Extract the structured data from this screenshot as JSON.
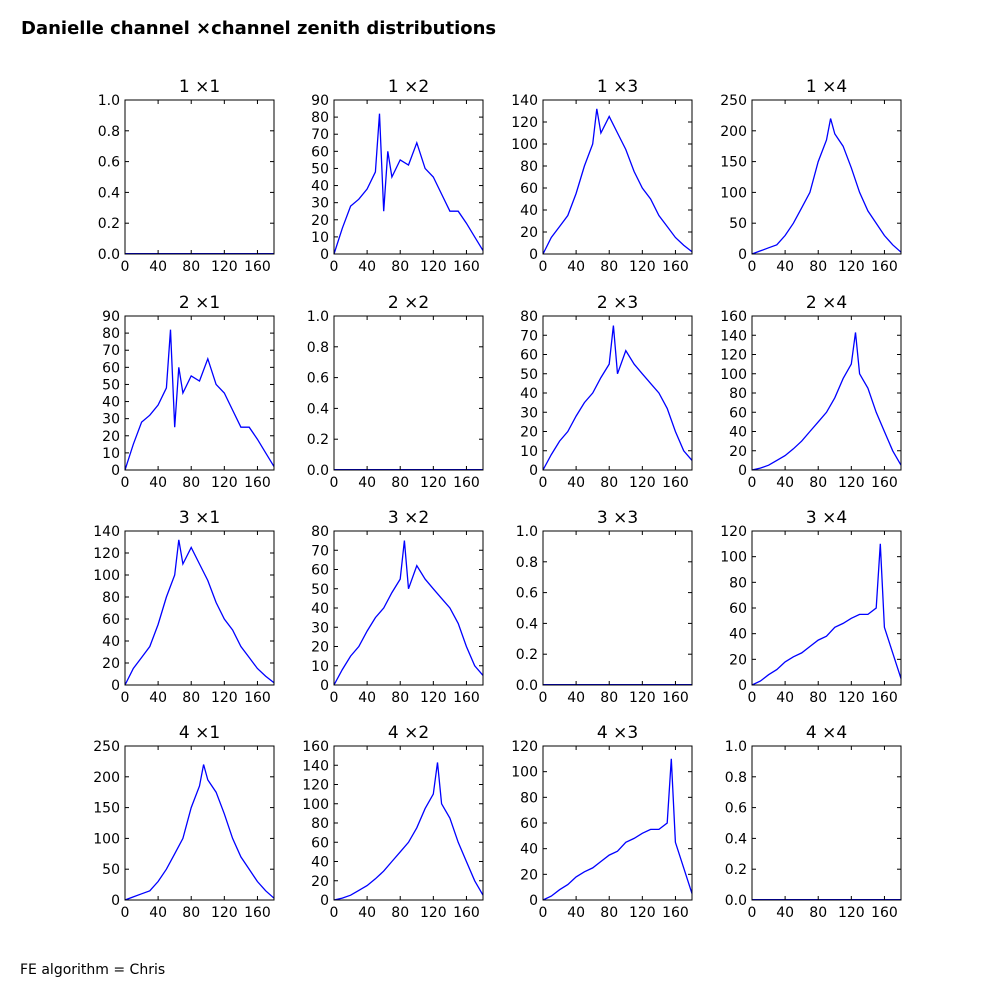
{
  "figure": {
    "title": "Danielle channel ×channel zenith distributions",
    "footer": "FE algorithm = Chris"
  },
  "style": {
    "line_color": "#0000ff",
    "axis_color": "#000000",
    "background": "#ffffff"
  },
  "chart_data": [
    {
      "type": "line",
      "title": "1 ×1",
      "row": 1,
      "col": 1,
      "empty": true,
      "xlim": [
        0,
        180
      ],
      "ylim": [
        0,
        1
      ],
      "xticks": [
        0,
        40,
        80,
        120,
        160
      ],
      "yticks": [
        0.0,
        0.2,
        0.4,
        0.6,
        0.8,
        1.0
      ],
      "series": []
    },
    {
      "type": "line",
      "title": "1 ×2",
      "row": 1,
      "col": 2,
      "xlim": [
        0,
        180
      ],
      "ylim": [
        0,
        90
      ],
      "xticks": [
        0,
        40,
        80,
        120,
        160
      ],
      "yticks": [
        0,
        10,
        20,
        30,
        40,
        50,
        60,
        70,
        80,
        90
      ],
      "series": [
        {
          "x": [
            0,
            10,
            20,
            30,
            40,
            50,
            55,
            60,
            65,
            70,
            80,
            90,
            100,
            110,
            120,
            130,
            140,
            150,
            160,
            170,
            180
          ],
          "y": [
            0,
            15,
            28,
            32,
            38,
            48,
            82,
            25,
            60,
            45,
            55,
            52,
            65,
            50,
            45,
            35,
            25,
            25,
            18,
            10,
            2
          ]
        }
      ]
    },
    {
      "type": "line",
      "title": "1 ×3",
      "row": 1,
      "col": 3,
      "xlim": [
        0,
        180
      ],
      "ylim": [
        0,
        140
      ],
      "xticks": [
        0,
        40,
        80,
        120,
        160
      ],
      "yticks": [
        0,
        20,
        40,
        60,
        80,
        100,
        120,
        140
      ],
      "series": [
        {
          "x": [
            0,
            10,
            20,
            30,
            40,
            50,
            60,
            65,
            70,
            80,
            90,
            100,
            110,
            120,
            130,
            140,
            150,
            160,
            170,
            180
          ],
          "y": [
            0,
            15,
            25,
            35,
            55,
            80,
            100,
            132,
            110,
            125,
            110,
            95,
            75,
            60,
            50,
            35,
            25,
            15,
            8,
            2
          ]
        }
      ]
    },
    {
      "type": "line",
      "title": "1 ×4",
      "row": 1,
      "col": 4,
      "xlim": [
        0,
        180
      ],
      "ylim": [
        0,
        250
      ],
      "xticks": [
        0,
        40,
        80,
        120,
        160
      ],
      "yticks": [
        0,
        50,
        100,
        150,
        200,
        250
      ],
      "series": [
        {
          "x": [
            0,
            10,
            20,
            30,
            40,
            50,
            60,
            70,
            80,
            90,
            95,
            100,
            110,
            120,
            130,
            140,
            150,
            160,
            170,
            180
          ],
          "y": [
            0,
            5,
            10,
            15,
            30,
            50,
            75,
            100,
            150,
            185,
            220,
            195,
            175,
            140,
            100,
            70,
            50,
            30,
            15,
            3
          ]
        }
      ]
    },
    {
      "type": "line",
      "title": "2 ×1",
      "row": 2,
      "col": 1,
      "xlim": [
        0,
        180
      ],
      "ylim": [
        0,
        90
      ],
      "xticks": [
        0,
        40,
        80,
        120,
        160
      ],
      "yticks": [
        0,
        10,
        20,
        30,
        40,
        50,
        60,
        70,
        80,
        90
      ],
      "series": [
        {
          "x": [
            0,
            10,
            20,
            30,
            40,
            50,
            55,
            60,
            65,
            70,
            80,
            90,
            100,
            110,
            120,
            130,
            140,
            150,
            160,
            170,
            180
          ],
          "y": [
            0,
            15,
            28,
            32,
            38,
            48,
            82,
            25,
            60,
            45,
            55,
            52,
            65,
            50,
            45,
            35,
            25,
            25,
            18,
            10,
            2
          ]
        }
      ]
    },
    {
      "type": "line",
      "title": "2 ×2",
      "row": 2,
      "col": 2,
      "empty": true,
      "xlim": [
        0,
        180
      ],
      "ylim": [
        0,
        1
      ],
      "xticks": [
        0,
        40,
        80,
        120,
        160
      ],
      "yticks": [
        0.0,
        0.2,
        0.4,
        0.6,
        0.8,
        1.0
      ],
      "series": []
    },
    {
      "type": "line",
      "title": "2 ×3",
      "row": 2,
      "col": 3,
      "xlim": [
        0,
        180
      ],
      "ylim": [
        0,
        80
      ],
      "xticks": [
        0,
        40,
        80,
        120,
        160
      ],
      "yticks": [
        0,
        10,
        20,
        30,
        40,
        50,
        60,
        70,
        80
      ],
      "series": [
        {
          "x": [
            0,
            10,
            20,
            30,
            40,
            50,
            60,
            70,
            80,
            85,
            90,
            100,
            110,
            120,
            130,
            140,
            150,
            160,
            170,
            180
          ],
          "y": [
            0,
            8,
            15,
            20,
            28,
            35,
            40,
            48,
            55,
            75,
            50,
            62,
            55,
            50,
            45,
            40,
            32,
            20,
            10,
            5
          ]
        }
      ]
    },
    {
      "type": "line",
      "title": "2 ×4",
      "row": 2,
      "col": 4,
      "xlim": [
        0,
        180
      ],
      "ylim": [
        0,
        160
      ],
      "xticks": [
        0,
        40,
        80,
        120,
        160
      ],
      "yticks": [
        0,
        20,
        40,
        60,
        80,
        100,
        120,
        140,
        160
      ],
      "series": [
        {
          "x": [
            0,
            10,
            20,
            30,
            40,
            50,
            60,
            70,
            80,
            90,
            100,
            110,
            120,
            125,
            130,
            140,
            150,
            160,
            170,
            180
          ],
          "y": [
            0,
            2,
            5,
            10,
            15,
            22,
            30,
            40,
            50,
            60,
            75,
            95,
            110,
            143,
            100,
            85,
            60,
            40,
            20,
            5
          ]
        }
      ]
    },
    {
      "type": "line",
      "title": "3 ×1",
      "row": 3,
      "col": 1,
      "xlim": [
        0,
        180
      ],
      "ylim": [
        0,
        140
      ],
      "xticks": [
        0,
        40,
        80,
        120,
        160
      ],
      "yticks": [
        0,
        20,
        40,
        60,
        80,
        100,
        120,
        140
      ],
      "series": [
        {
          "x": [
            0,
            10,
            20,
            30,
            40,
            50,
            60,
            65,
            70,
            80,
            90,
            100,
            110,
            120,
            130,
            140,
            150,
            160,
            170,
            180
          ],
          "y": [
            0,
            15,
            25,
            35,
            55,
            80,
            100,
            132,
            110,
            125,
            110,
            95,
            75,
            60,
            50,
            35,
            25,
            15,
            8,
            2
          ]
        }
      ]
    },
    {
      "type": "line",
      "title": "3 ×2",
      "row": 3,
      "col": 2,
      "xlim": [
        0,
        180
      ],
      "ylim": [
        0,
        80
      ],
      "xticks": [
        0,
        40,
        80,
        120,
        160
      ],
      "yticks": [
        0,
        10,
        20,
        30,
        40,
        50,
        60,
        70,
        80
      ],
      "series": [
        {
          "x": [
            0,
            10,
            20,
            30,
            40,
            50,
            60,
            70,
            80,
            85,
            90,
            100,
            110,
            120,
            130,
            140,
            150,
            160,
            170,
            180
          ],
          "y": [
            0,
            8,
            15,
            20,
            28,
            35,
            40,
            48,
            55,
            75,
            50,
            62,
            55,
            50,
            45,
            40,
            32,
            20,
            10,
            5
          ]
        }
      ]
    },
    {
      "type": "line",
      "title": "3 ×3",
      "row": 3,
      "col": 3,
      "empty": true,
      "xlim": [
        0,
        180
      ],
      "ylim": [
        0,
        1
      ],
      "xticks": [
        0,
        40,
        80,
        120,
        160
      ],
      "yticks": [
        0.0,
        0.2,
        0.4,
        0.6,
        0.8,
        1.0
      ],
      "series": []
    },
    {
      "type": "line",
      "title": "3 ×4",
      "row": 3,
      "col": 4,
      "xlim": [
        0,
        180
      ],
      "ylim": [
        0,
        120
      ],
      "xticks": [
        0,
        40,
        80,
        120,
        160
      ],
      "yticks": [
        0,
        20,
        40,
        60,
        80,
        100,
        120
      ],
      "series": [
        {
          "x": [
            0,
            10,
            20,
            30,
            40,
            50,
            60,
            70,
            80,
            90,
            100,
            110,
            120,
            130,
            140,
            150,
            155,
            160,
            170,
            180
          ],
          "y": [
            0,
            3,
            8,
            12,
            18,
            22,
            25,
            30,
            35,
            38,
            45,
            48,
            52,
            55,
            55,
            60,
            110,
            45,
            25,
            5
          ]
        }
      ]
    },
    {
      "type": "line",
      "title": "4 ×1",
      "row": 4,
      "col": 1,
      "xlim": [
        0,
        180
      ],
      "ylim": [
        0,
        250
      ],
      "xticks": [
        0,
        40,
        80,
        120,
        160
      ],
      "yticks": [
        0,
        50,
        100,
        150,
        200,
        250
      ],
      "series": [
        {
          "x": [
            0,
            10,
            20,
            30,
            40,
            50,
            60,
            70,
            80,
            90,
            95,
            100,
            110,
            120,
            130,
            140,
            150,
            160,
            170,
            180
          ],
          "y": [
            0,
            5,
            10,
            15,
            30,
            50,
            75,
            100,
            150,
            185,
            220,
            195,
            175,
            140,
            100,
            70,
            50,
            30,
            15,
            3
          ]
        }
      ]
    },
    {
      "type": "line",
      "title": "4 ×2",
      "row": 4,
      "col": 2,
      "xlim": [
        0,
        180
      ],
      "ylim": [
        0,
        160
      ],
      "xticks": [
        0,
        40,
        80,
        120,
        160
      ],
      "yticks": [
        0,
        20,
        40,
        60,
        80,
        100,
        120,
        140,
        160
      ],
      "series": [
        {
          "x": [
            0,
            10,
            20,
            30,
            40,
            50,
            60,
            70,
            80,
            90,
            100,
            110,
            120,
            125,
            130,
            140,
            150,
            160,
            170,
            180
          ],
          "y": [
            0,
            2,
            5,
            10,
            15,
            22,
            30,
            40,
            50,
            60,
            75,
            95,
            110,
            143,
            100,
            85,
            60,
            40,
            20,
            5
          ]
        }
      ]
    },
    {
      "type": "line",
      "title": "4 ×3",
      "row": 4,
      "col": 3,
      "xlim": [
        0,
        180
      ],
      "ylim": [
        0,
        120
      ],
      "xticks": [
        0,
        40,
        80,
        120,
        160
      ],
      "yticks": [
        0,
        20,
        40,
        60,
        80,
        100,
        120
      ],
      "series": [
        {
          "x": [
            0,
            10,
            20,
            30,
            40,
            50,
            60,
            70,
            80,
            90,
            100,
            110,
            120,
            130,
            140,
            150,
            155,
            160,
            170,
            180
          ],
          "y": [
            0,
            3,
            8,
            12,
            18,
            22,
            25,
            30,
            35,
            38,
            45,
            48,
            52,
            55,
            55,
            60,
            110,
            45,
            25,
            5
          ]
        }
      ]
    },
    {
      "type": "line",
      "title": "4 ×4",
      "row": 4,
      "col": 4,
      "empty": true,
      "xlim": [
        0,
        180
      ],
      "ylim": [
        0,
        1
      ],
      "xticks": [
        0,
        40,
        80,
        120,
        160
      ],
      "yticks": [
        0.0,
        0.2,
        0.4,
        0.6,
        0.8,
        1.0
      ],
      "series": []
    }
  ]
}
